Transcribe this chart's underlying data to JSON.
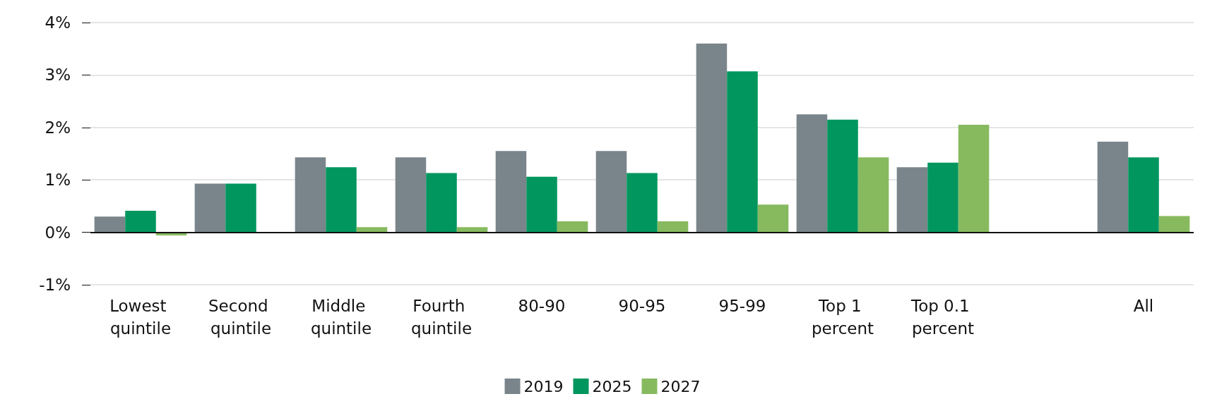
{
  "chart_data": {
    "type": "bar",
    "categories": [
      "Lowest quintile",
      "Second quintile",
      "Middle quintile",
      "Fourth quintile",
      "80-90",
      "90-95",
      "95-99",
      "Top 1 percent",
      "Top 0.1 percent",
      null,
      "All"
    ],
    "series": [
      {
        "name": "2019",
        "color": "#7a858b",
        "values": [
          0.3,
          0.93,
          1.43,
          1.43,
          1.55,
          1.55,
          3.6,
          2.25,
          1.24,
          null,
          1.73
        ]
      },
      {
        "name": "2025",
        "color": "#00965e",
        "values": [
          0.41,
          0.93,
          1.24,
          1.13,
          1.06,
          1.13,
          3.07,
          2.15,
          1.33,
          null,
          1.43
        ]
      },
      {
        "name": "2027",
        "color": "#87ba5f",
        "values": [
          -0.06,
          null,
          0.1,
          0.1,
          0.21,
          0.21,
          0.53,
          1.43,
          2.05,
          null,
          0.31
        ]
      }
    ],
    "ylim": [
      -1,
      4
    ],
    "yticks": [
      {
        "value": -1,
        "label": "-1%"
      },
      {
        "value": 0,
        "label": "0%"
      },
      {
        "value": 1,
        "label": "1%"
      },
      {
        "value": 2,
        "label": "2%"
      },
      {
        "value": 3,
        "label": "3%"
      },
      {
        "value": 4,
        "label": "4%"
      }
    ],
    "grid": "y",
    "legend": "bottom"
  }
}
